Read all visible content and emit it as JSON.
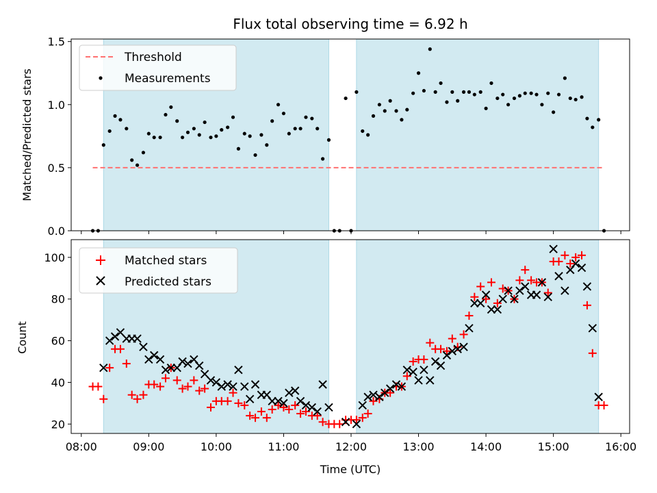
{
  "figure": {
    "title": "Flux total observing time = 6.92 h",
    "xlabel": "Time (UTC)",
    "x_ticks": [
      "08:00",
      "09:00",
      "10:00",
      "11:00",
      "12:00",
      "13:00",
      "14:00",
      "15:00",
      "16:00"
    ],
    "shade_color": "#add8e6",
    "shaded_intervals_hours": [
      [
        8.33,
        11.67
      ],
      [
        12.08,
        15.67
      ]
    ]
  },
  "chart_data": [
    {
      "type": "scatter",
      "title": "Flux total observing time = 6.92 h",
      "xlabel": "",
      "ylabel": "Matched/Predicted stars",
      "xlim_hours": [
        7.85,
        16.13
      ],
      "ylim": [
        0,
        1.52
      ],
      "y_ticks": [
        "0.0",
        "0.5",
        "1.0",
        "1.5"
      ],
      "threshold": {
        "name": "Threshold",
        "value": 0.5,
        "x_range_hours": [
          8.17,
          15.75
        ],
        "color": "#ff7070"
      },
      "series": [
        {
          "name": "Measurements",
          "color": "#000000",
          "x_hours": [
            8.17,
            8.25,
            8.33,
            8.42,
            8.5,
            8.58,
            8.67,
            8.75,
            8.83,
            8.92,
            9.0,
            9.08,
            9.17,
            9.25,
            9.33,
            9.42,
            9.5,
            9.58,
            9.67,
            9.75,
            9.83,
            9.92,
            10.0,
            10.08,
            10.17,
            10.25,
            10.33,
            10.42,
            10.5,
            10.58,
            10.67,
            10.75,
            10.83,
            10.92,
            11.0,
            11.08,
            11.17,
            11.25,
            11.33,
            11.42,
            11.5,
            11.58,
            11.67,
            11.75,
            11.83,
            11.92,
            12.0,
            12.08,
            12.17,
            12.25,
            12.33,
            12.42,
            12.5,
            12.58,
            12.67,
            12.75,
            12.83,
            12.92,
            13.0,
            13.08,
            13.17,
            13.25,
            13.33,
            13.42,
            13.5,
            13.58,
            13.67,
            13.75,
            13.83,
            13.92,
            14.0,
            14.08,
            14.17,
            14.25,
            14.33,
            14.42,
            14.5,
            14.58,
            14.67,
            14.75,
            14.83,
            14.92,
            15.0,
            15.08,
            15.17,
            15.25,
            15.33,
            15.42,
            15.5,
            15.58,
            15.67,
            15.75
          ],
          "y": [
            0.0,
            0.0,
            0.68,
            0.79,
            0.91,
            0.88,
            0.81,
            0.56,
            0.52,
            0.62,
            0.77,
            0.74,
            0.74,
            0.92,
            0.98,
            0.87,
            0.74,
            0.78,
            0.81,
            0.76,
            0.86,
            0.74,
            0.75,
            0.8,
            0.82,
            0.9,
            0.65,
            0.77,
            0.75,
            0.6,
            0.76,
            0.68,
            0.87,
            1.0,
            0.93,
            0.77,
            0.81,
            0.81,
            0.9,
            0.89,
            0.81,
            0.57,
            0.72,
            0.0,
            0.0,
            1.05,
            0.0,
            1.1,
            0.79,
            0.76,
            0.91,
            1.0,
            0.95,
            1.03,
            0.95,
            0.88,
            0.96,
            1.09,
            1.25,
            1.11,
            1.44,
            1.1,
            1.17,
            1.02,
            1.1,
            1.03,
            1.1,
            1.1,
            1.08,
            1.1,
            0.97,
            1.17,
            1.05,
            1.08,
            1.0,
            1.05,
            1.07,
            1.09,
            1.09,
            1.08,
            1.0,
            1.09,
            0.94,
            1.08,
            1.21,
            1.05,
            1.04,
            1.06,
            0.89,
            0.82,
            0.88,
            0.0
          ]
        }
      ]
    },
    {
      "type": "scatter",
      "xlabel": "Time (UTC)",
      "ylabel": "Count",
      "xlim_hours": [
        7.85,
        16.13
      ],
      "ylim": [
        15.5,
        108.5
      ],
      "y_ticks": [
        "20",
        "40",
        "60",
        "80",
        "100"
      ],
      "series": [
        {
          "name": "Matched stars",
          "marker": "plus",
          "color": "#ff0000",
          "x_hours": [
            8.17,
            8.25,
            8.33,
            8.42,
            8.5,
            8.58,
            8.67,
            8.75,
            8.83,
            8.92,
            9.0,
            9.08,
            9.17,
            9.25,
            9.33,
            9.42,
            9.5,
            9.58,
            9.67,
            9.75,
            9.83,
            9.92,
            10.0,
            10.08,
            10.17,
            10.25,
            10.33,
            10.42,
            10.5,
            10.58,
            10.67,
            10.75,
            10.83,
            10.92,
            11.0,
            11.08,
            11.17,
            11.25,
            11.33,
            11.42,
            11.5,
            11.58,
            11.67,
            11.75,
            11.83,
            11.92,
            12.0,
            12.08,
            12.17,
            12.25,
            12.33,
            12.42,
            12.5,
            12.58,
            12.67,
            12.75,
            12.83,
            12.92,
            13.0,
            13.08,
            13.17,
            13.25,
            13.33,
            13.42,
            13.5,
            13.58,
            13.67,
            13.75,
            13.83,
            13.92,
            14.0,
            14.08,
            14.17,
            14.25,
            14.33,
            14.42,
            14.5,
            14.58,
            14.67,
            14.75,
            14.83,
            14.92,
            15.0,
            15.08,
            15.17,
            15.25,
            15.33,
            15.42,
            15.5,
            15.58,
            15.67,
            15.75
          ],
          "y": [
            38,
            38,
            32,
            47,
            56,
            56,
            49,
            34,
            32,
            34,
            39,
            39,
            38,
            42,
            47,
            41,
            37,
            38,
            41,
            36,
            37,
            28,
            31,
            31,
            31,
            35,
            30,
            29,
            24,
            23,
            26,
            23,
            27,
            29,
            28,
            27,
            29,
            25,
            26,
            24,
            24,
            21,
            20,
            20,
            20,
            22,
            22,
            22,
            23,
            25,
            31,
            32,
            35,
            35,
            38,
            38,
            43,
            50,
            51,
            51,
            59,
            56,
            56,
            55,
            61,
            57,
            63,
            72,
            81,
            86,
            80,
            88,
            78,
            85,
            84,
            80,
            89,
            94,
            89,
            88,
            88,
            83,
            98,
            98,
            101,
            97,
            100,
            101,
            77,
            54,
            29,
            29
          ]
        },
        {
          "name": "Predicted stars",
          "marker": "x",
          "color": "#000000",
          "x_hours": [
            8.33,
            8.42,
            8.5,
            8.58,
            8.67,
            8.75,
            8.83,
            8.92,
            9.0,
            9.08,
            9.17,
            9.25,
            9.33,
            9.42,
            9.5,
            9.58,
            9.67,
            9.75,
            9.83,
            9.92,
            10.0,
            10.08,
            10.17,
            10.25,
            10.33,
            10.42,
            10.5,
            10.58,
            10.67,
            10.75,
            10.83,
            10.92,
            11.0,
            11.08,
            11.17,
            11.25,
            11.33,
            11.42,
            11.5,
            11.58,
            11.67,
            11.92,
            12.08,
            12.17,
            12.25,
            12.33,
            12.42,
            12.5,
            12.58,
            12.67,
            12.75,
            12.83,
            12.92,
            13.0,
            13.08,
            13.17,
            13.25,
            13.33,
            13.42,
            13.5,
            13.58,
            13.67,
            13.75,
            13.83,
            13.92,
            14.0,
            14.08,
            14.17,
            14.25,
            14.33,
            14.42,
            14.5,
            14.58,
            14.67,
            14.75,
            14.83,
            14.92,
            15.0,
            15.08,
            15.17,
            15.25,
            15.33,
            15.42,
            15.5,
            15.58,
            15.67
          ],
          "y": [
            47,
            60,
            62,
            64,
            61,
            61,
            61,
            57,
            51,
            53,
            51,
            46,
            47,
            47,
            50,
            49,
            51,
            48,
            44,
            41,
            40,
            38,
            39,
            38,
            46,
            38,
            32,
            39,
            34,
            34,
            31,
            31,
            30,
            35,
            36,
            31,
            29,
            28,
            26,
            39,
            28,
            21,
            20,
            29,
            33,
            34,
            33,
            35,
            37,
            39,
            38,
            46,
            45,
            41,
            46,
            41,
            50,
            48,
            53,
            55,
            56,
            57,
            66,
            78,
            78,
            82,
            75,
            75,
            80,
            84,
            80,
            84,
            86,
            82,
            82,
            88,
            81,
            104,
            91,
            84,
            94,
            97,
            95,
            86,
            66,
            33
          ]
        }
      ]
    }
  ]
}
